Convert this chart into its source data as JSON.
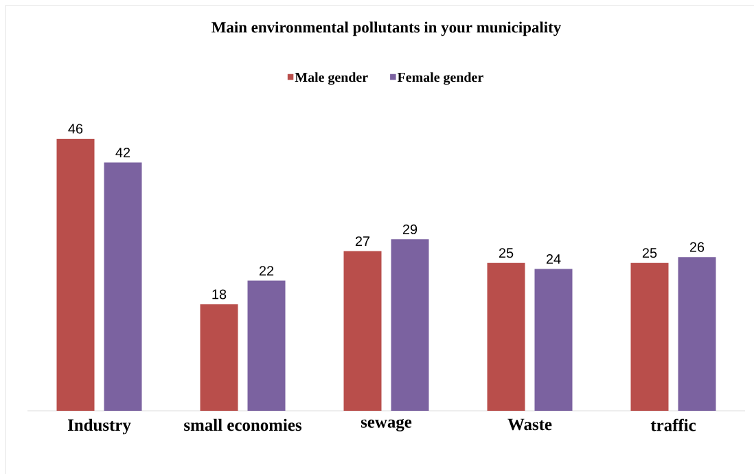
{
  "chart_data": {
    "type": "bar",
    "title": "Main environmental pollutants in your municipality",
    "categories": [
      "Industry",
      "small economies",
      "sewage",
      "Waste",
      "traffic"
    ],
    "series": [
      {
        "name": "Male gender",
        "color": "#b94e4b",
        "values": [
          46,
          18,
          27,
          25,
          25
        ]
      },
      {
        "name": "Female gender",
        "color": "#7b62a0",
        "values": [
          42,
          22,
          29,
          24,
          26
        ]
      }
    ],
    "data_labels": true,
    "legend": "top"
  }
}
